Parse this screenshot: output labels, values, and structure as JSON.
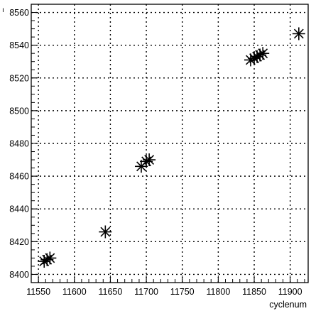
{
  "chart_data": {
    "type": "scatter",
    "title": "",
    "xlabel": "cyclenum",
    "ylabel": "",
    "corner_mark": "ı",
    "xlim": [
      11540,
      11925
    ],
    "ylim": [
      8395,
      8565
    ],
    "grid": true,
    "marker": "asterisk",
    "xticks": [
      11550,
      11600,
      11650,
      11700,
      11750,
      11800,
      11850,
      11900
    ],
    "yticks": [
      8400,
      8420,
      8440,
      8460,
      8480,
      8500,
      8520,
      8540,
      8560
    ],
    "points": [
      {
        "x": 11558,
        "y": 8408
      },
      {
        "x": 11562,
        "y": 8409
      },
      {
        "x": 11566,
        "y": 8410
      },
      {
        "x": 11643,
        "y": 8426
      },
      {
        "x": 11693,
        "y": 8466
      },
      {
        "x": 11700,
        "y": 8469
      },
      {
        "x": 11704,
        "y": 8470
      },
      {
        "x": 11845,
        "y": 8531
      },
      {
        "x": 11850,
        "y": 8532
      },
      {
        "x": 11854,
        "y": 8533
      },
      {
        "x": 11858,
        "y": 8534
      },
      {
        "x": 11862,
        "y": 8535
      },
      {
        "x": 11912,
        "y": 8547
      }
    ]
  }
}
